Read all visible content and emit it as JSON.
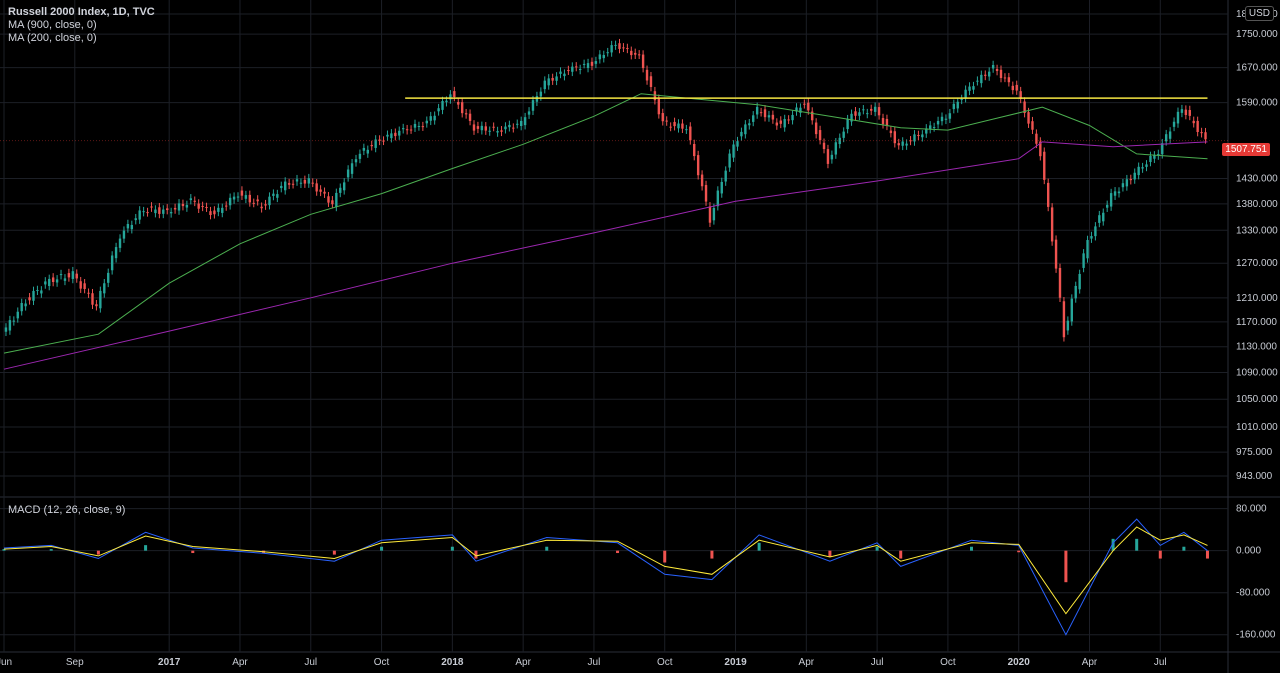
{
  "legend": {
    "title": "Russell 2000 Index, 1D, TVC",
    "ma900": "MA (900, close, 0)",
    "ma200": "MA (200, close, 0)",
    "macd": "MACD (12, 26, close, 9)"
  },
  "currency": "USD",
  "last_price": "1507.751",
  "colors": {
    "background": "#000000",
    "grid": "#1c1f26",
    "resistance": "#f5e642",
    "ma200": "#4caf50",
    "ma900": "#9c27b0",
    "up": "#26a69a",
    "down": "#ef5350",
    "macd_line": "#2962ff",
    "signal_line": "#ffeb3b",
    "price_tag": "#e53935"
  },
  "chart_data": [
    {
      "type": "candlestick",
      "title": "Russell 2000 Index, 1D, TVC",
      "x_ticks": [
        "Jun",
        "Sep",
        "2017",
        "Apr",
        "Jul",
        "Oct",
        "2018",
        "Apr",
        "Jul",
        "Oct",
        "2019",
        "Apr",
        "Jul",
        "Oct",
        "2020",
        "Apr",
        "Jul"
      ],
      "y_ticks": [
        "1800.000",
        "1750.000",
        "1670.000",
        "1590.000",
        "1430.000",
        "1380.000",
        "1330.000",
        "1270.000",
        "1210.000",
        "1170.000",
        "1130.000",
        "1090.000",
        "1050.000",
        "1010.000",
        "975.000",
        "943.000"
      ],
      "ylim": [
        943,
        1800
      ],
      "y_scale": "log",
      "close_series": [
        {
          "date": "2016-06",
          "value": 1150
        },
        {
          "date": "2016-07",
          "value": 1205
        },
        {
          "date": "2016-08",
          "value": 1240
        },
        {
          "date": "2016-09",
          "value": 1250
        },
        {
          "date": "2016-10",
          "value": 1195
        },
        {
          "date": "2016-11",
          "value": 1320
        },
        {
          "date": "2016-12",
          "value": 1370
        },
        {
          "date": "2017-01",
          "value": 1365
        },
        {
          "date": "2017-02",
          "value": 1385
        },
        {
          "date": "2017-03",
          "value": 1360
        },
        {
          "date": "2017-04",
          "value": 1400
        },
        {
          "date": "2017-05",
          "value": 1375
        },
        {
          "date": "2017-06",
          "value": 1420
        },
        {
          "date": "2017-07",
          "value": 1425
        },
        {
          "date": "2017-08",
          "value": 1380
        },
        {
          "date": "2017-09",
          "value": 1475
        },
        {
          "date": "2017-10",
          "value": 1510
        },
        {
          "date": "2017-11",
          "value": 1530
        },
        {
          "date": "2017-12",
          "value": 1545
        },
        {
          "date": "2018-01",
          "value": 1610
        },
        {
          "date": "2018-02",
          "value": 1535
        },
        {
          "date": "2018-03",
          "value": 1530
        },
        {
          "date": "2018-04",
          "value": 1545
        },
        {
          "date": "2018-05",
          "value": 1635
        },
        {
          "date": "2018-06",
          "value": 1665
        },
        {
          "date": "2018-07",
          "value": 1680
        },
        {
          "date": "2018-08",
          "value": 1725
        },
        {
          "date": "2018-09",
          "value": 1695
        },
        {
          "date": "2018-10",
          "value": 1545
        },
        {
          "date": "2018-11",
          "value": 1535
        },
        {
          "date": "2018-12",
          "value": 1350
        },
        {
          "date": "2019-01",
          "value": 1500
        },
        {
          "date": "2019-02",
          "value": 1575
        },
        {
          "date": "2019-03",
          "value": 1540
        },
        {
          "date": "2019-04",
          "value": 1590
        },
        {
          "date": "2019-05",
          "value": 1465
        },
        {
          "date": "2019-06",
          "value": 1565
        },
        {
          "date": "2019-07",
          "value": 1575
        },
        {
          "date": "2019-08",
          "value": 1495
        },
        {
          "date": "2019-09",
          "value": 1525
        },
        {
          "date": "2019-10",
          "value": 1560
        },
        {
          "date": "2019-11",
          "value": 1625
        },
        {
          "date": "2019-12",
          "value": 1670
        },
        {
          "date": "2020-01",
          "value": 1615
        },
        {
          "date": "2020-02",
          "value": 1480
        },
        {
          "date": "2020-03",
          "value": 1150
        },
        {
          "date": "2020-04",
          "value": 1310
        },
        {
          "date": "2020-05",
          "value": 1395
        },
        {
          "date": "2020-06",
          "value": 1440
        },
        {
          "date": "2020-07",
          "value": 1485
        },
        {
          "date": "2020-08",
          "value": 1580
        },
        {
          "date": "2020-09",
          "value": 1507.751
        }
      ],
      "ma200": [
        {
          "date": "2016-06",
          "value": 1120
        },
        {
          "date": "2016-10",
          "value": 1150
        },
        {
          "date": "2017-01",
          "value": 1235
        },
        {
          "date": "2017-04",
          "value": 1305
        },
        {
          "date": "2017-07",
          "value": 1360
        },
        {
          "date": "2017-10",
          "value": 1400
        },
        {
          "date": "2018-01",
          "value": 1450
        },
        {
          "date": "2018-04",
          "value": 1500
        },
        {
          "date": "2018-07",
          "value": 1560
        },
        {
          "date": "2018-09",
          "value": 1610
        },
        {
          "date": "2018-11",
          "value": 1600
        },
        {
          "date": "2019-02",
          "value": 1585
        },
        {
          "date": "2019-05",
          "value": 1560
        },
        {
          "date": "2019-08",
          "value": 1535
        },
        {
          "date": "2019-10",
          "value": 1530
        },
        {
          "date": "2019-12",
          "value": 1555
        },
        {
          "date": "2020-02",
          "value": 1580
        },
        {
          "date": "2020-04",
          "value": 1540
        },
        {
          "date": "2020-06",
          "value": 1480
        },
        {
          "date": "2020-09",
          "value": 1470
        }
      ],
      "ma900": [
        {
          "date": "2016-06",
          "value": 1095
        },
        {
          "date": "2017-01",
          "value": 1155
        },
        {
          "date": "2017-07",
          "value": 1210
        },
        {
          "date": "2018-01",
          "value": 1270
        },
        {
          "date": "2018-07",
          "value": 1325
        },
        {
          "date": "2019-01",
          "value": 1385
        },
        {
          "date": "2019-07",
          "value": 1425
        },
        {
          "date": "2020-01",
          "value": 1470
        },
        {
          "date": "2020-02",
          "value": 1505
        },
        {
          "date": "2020-05",
          "value": 1495
        },
        {
          "date": "2020-09",
          "value": 1505
        }
      ],
      "resistance": {
        "value": 1600,
        "from": "2017-11",
        "to": "2020-09"
      }
    },
    {
      "type": "line",
      "title": "MACD (12, 26, close, 9)",
      "y_ticks": [
        "80.000",
        "0.000",
        "-80.000",
        "-160.000"
      ],
      "ylim": [
        -170,
        85
      ],
      "macd": [
        {
          "date": "2016-06",
          "value": 5
        },
        {
          "date": "2016-08",
          "value": 10
        },
        {
          "date": "2016-10",
          "value": -15
        },
        {
          "date": "2016-12",
          "value": 35
        },
        {
          "date": "2017-02",
          "value": 5
        },
        {
          "date": "2017-05",
          "value": -5
        },
        {
          "date": "2017-08",
          "value": -20
        },
        {
          "date": "2017-10",
          "value": 20
        },
        {
          "date": "2018-01",
          "value": 30
        },
        {
          "date": "2018-02",
          "value": -20
        },
        {
          "date": "2018-05",
          "value": 25
        },
        {
          "date": "2018-08",
          "value": 15
        },
        {
          "date": "2018-10",
          "value": -45
        },
        {
          "date": "2018-12",
          "value": -55
        },
        {
          "date": "2019-02",
          "value": 30
        },
        {
          "date": "2019-05",
          "value": -20
        },
        {
          "date": "2019-07",
          "value": 15
        },
        {
          "date": "2019-08",
          "value": -30
        },
        {
          "date": "2019-11",
          "value": 20
        },
        {
          "date": "2020-01",
          "value": 10
        },
        {
          "date": "2020-03",
          "value": -160
        },
        {
          "date": "2020-05",
          "value": 15
        },
        {
          "date": "2020-06",
          "value": 60
        },
        {
          "date": "2020-07",
          "value": 10
        },
        {
          "date": "2020-08",
          "value": 35
        },
        {
          "date": "2020-09",
          "value": 0
        }
      ],
      "signal": [
        {
          "date": "2016-06",
          "value": 3
        },
        {
          "date": "2016-08",
          "value": 8
        },
        {
          "date": "2016-10",
          "value": -10
        },
        {
          "date": "2016-12",
          "value": 28
        },
        {
          "date": "2017-02",
          "value": 8
        },
        {
          "date": "2017-05",
          "value": -2
        },
        {
          "date": "2017-08",
          "value": -15
        },
        {
          "date": "2017-10",
          "value": 15
        },
        {
          "date": "2018-01",
          "value": 25
        },
        {
          "date": "2018-02",
          "value": -10
        },
        {
          "date": "2018-05",
          "value": 20
        },
        {
          "date": "2018-08",
          "value": 18
        },
        {
          "date": "2018-10",
          "value": -30
        },
        {
          "date": "2018-12",
          "value": -45
        },
        {
          "date": "2019-02",
          "value": 20
        },
        {
          "date": "2019-05",
          "value": -12
        },
        {
          "date": "2019-07",
          "value": 10
        },
        {
          "date": "2019-08",
          "value": -20
        },
        {
          "date": "2019-11",
          "value": 15
        },
        {
          "date": "2020-01",
          "value": 12
        },
        {
          "date": "2020-03",
          "value": -120
        },
        {
          "date": "2020-05",
          "value": 0
        },
        {
          "date": "2020-06",
          "value": 45
        },
        {
          "date": "2020-07",
          "value": 20
        },
        {
          "date": "2020-08",
          "value": 30
        },
        {
          "date": "2020-09",
          "value": 10
        }
      ]
    }
  ]
}
